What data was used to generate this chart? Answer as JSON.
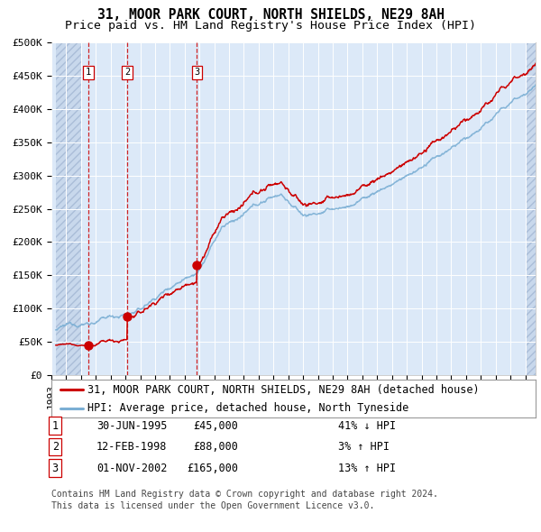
{
  "title": "31, MOOR PARK COURT, NORTH SHIELDS, NE29 8AH",
  "subtitle": "Price paid vs. HM Land Registry's House Price Index (HPI)",
  "ylim": [
    0,
    500000
  ],
  "yticks": [
    0,
    50000,
    100000,
    150000,
    200000,
    250000,
    300000,
    350000,
    400000,
    450000,
    500000
  ],
  "ytick_labels": [
    "£0",
    "£50K",
    "£100K",
    "£150K",
    "£200K",
    "£250K",
    "£300K",
    "£350K",
    "£400K",
    "£450K",
    "£500K"
  ],
  "xlim_start": 1993.3,
  "xlim_end": 2025.7,
  "plot_bg_color": "#dce9f8",
  "grid_color": "#ffffff",
  "red_line_color": "#cc0000",
  "blue_line_color": "#7bafd4",
  "marker_color": "#cc0000",
  "vline_color": "#cc0000",
  "hatch_left_end": 1995.0,
  "hatch_right_start": 2025.0,
  "transactions": [
    {
      "num": 1,
      "date_x": 1995.5,
      "price": 45000,
      "label": "30-JUN-1995",
      "price_str": "£45,000",
      "hpi_str": "41% ↓ HPI"
    },
    {
      "num": 2,
      "date_x": 1998.12,
      "price": 88000,
      "label": "12-FEB-1998",
      "price_str": "£88,000",
      "hpi_str": "3% ↑ HPI"
    },
    {
      "num": 3,
      "date_x": 2002.83,
      "price": 165000,
      "label": "01-NOV-2002",
      "price_str": "£165,000",
      "hpi_str": "13% ↑ HPI"
    }
  ],
  "legend_line1": "31, MOOR PARK COURT, NORTH SHIELDS, NE29 8AH (detached house)",
  "legend_line2": "HPI: Average price, detached house, North Tyneside",
  "table_rows": [
    [
      "1",
      "30-JUN-1995",
      "£45,000",
      "41% ↓ HPI"
    ],
    [
      "2",
      "12-FEB-1998",
      "£88,000",
      "3% ↑ HPI"
    ],
    [
      "3",
      "01-NOV-2002",
      "£165,000",
      "13% ↑ HPI"
    ]
  ],
  "footnote1": "Contains HM Land Registry data © Crown copyright and database right 2024.",
  "footnote2": "This data is licensed under the Open Government Licence v3.0.",
  "title_fontsize": 10.5,
  "subtitle_fontsize": 9.5,
  "tick_fontsize": 8,
  "legend_fontsize": 8.5,
  "table_fontsize": 8.5,
  "footnote_fontsize": 7
}
